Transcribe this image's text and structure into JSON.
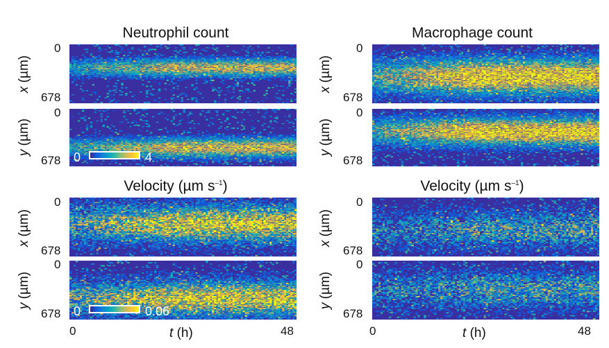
{
  "chart_data": [
    {
      "type": "heatmap",
      "panel": "neutrophil-count-x",
      "title": "Neutrophil count",
      "ylabel_var": "x",
      "ylabel_unit": "(µm)",
      "ytick_top": "0",
      "ytick_bottom": "678",
      "ylim": [
        0,
        678
      ],
      "xlim": [
        0,
        48
      ],
      "band_center": 0.4,
      "band_width": 0.16,
      "intensity": 0.75,
      "scatter": 0.25,
      "colorbar": null
    },
    {
      "type": "heatmap",
      "panel": "neutrophil-count-y",
      "ylabel_var": "y",
      "ylabel_unit": "(µm)",
      "ytick_top": "0",
      "ytick_bottom": "678",
      "ylim": [
        0,
        678
      ],
      "xlim": [
        0,
        48
      ],
      "band_center": 0.68,
      "band_width": 0.18,
      "intensity": 0.8,
      "scatter": 0.25,
      "colorbar": {
        "min": "0",
        "max": "4"
      }
    },
    {
      "type": "heatmap",
      "panel": "macrophage-count-x",
      "title": "Macrophage count",
      "ylabel_var": "x",
      "ylabel_unit": "(µm)",
      "ytick_top": "0",
      "ytick_bottom": "678",
      "ylim": [
        0,
        678
      ],
      "xlim": [
        0,
        48
      ],
      "band_center": 0.55,
      "band_width": 0.32,
      "intensity": 0.95,
      "scatter": 0.3,
      "colorbar": null
    },
    {
      "type": "heatmap",
      "panel": "macrophage-count-y",
      "ylabel_var": "y",
      "ylabel_unit": "(µm)",
      "ytick_top": "0",
      "ytick_bottom": "678",
      "ylim": [
        0,
        678
      ],
      "xlim": [
        0,
        48
      ],
      "band_center": 0.4,
      "band_width": 0.26,
      "intensity": 0.95,
      "scatter": 0.3,
      "colorbar": null
    },
    {
      "type": "heatmap",
      "panel": "neutrophil-velocity-x",
      "title_main": "Velocity (µm s",
      "title_exp": "–1",
      "title_close": ")",
      "ylabel_var": "x",
      "ylabel_unit": "(µm)",
      "ytick_top": "0",
      "ytick_bottom": "678",
      "ylim": [
        0,
        678
      ],
      "xlim": [
        0,
        48
      ],
      "band_center": 0.45,
      "band_width": 0.32,
      "intensity": 0.85,
      "scatter": 0.5,
      "colorbar": null
    },
    {
      "type": "heatmap",
      "panel": "neutrophil-velocity-y",
      "ylabel_var": "y",
      "ylabel_unit": "(µm)",
      "ytick_top": "0",
      "ytick_bottom": "678",
      "ylim": [
        0,
        678
      ],
      "xlim": [
        0,
        48
      ],
      "band_center": 0.65,
      "band_width": 0.3,
      "intensity": 0.85,
      "scatter": 0.5,
      "colorbar": {
        "min": "0",
        "max": "0.06"
      },
      "xlabel_var": "t",
      "xlabel_unit": "(h)",
      "xtick_left": "0",
      "xtick_right": "48"
    },
    {
      "type": "heatmap",
      "panel": "macrophage-velocity-x",
      "title_main": "Velocity (µm s",
      "title_exp": "–1",
      "title_close": ")",
      "ylabel_var": "x",
      "ylabel_unit": "(µm)",
      "ytick_top": "0",
      "ytick_bottom": "678",
      "ylim": [
        0,
        678
      ],
      "xlim": [
        0,
        48
      ],
      "band_center": 0.55,
      "band_width": 0.3,
      "intensity": 0.45,
      "scatter": 0.5,
      "colorbar": null
    },
    {
      "type": "heatmap",
      "panel": "macrophage-velocity-y",
      "ylabel_var": "y",
      "ylabel_unit": "(µm)",
      "ytick_top": "0",
      "ytick_bottom": "678",
      "ylim": [
        0,
        678
      ],
      "xlim": [
        0,
        48
      ],
      "band_center": 0.5,
      "band_width": 0.3,
      "intensity": 0.45,
      "scatter": 0.5,
      "colorbar": null,
      "xlabel_var": "t",
      "xlabel_unit": "(h)",
      "xtick_left": "0",
      "xtick_right": "48"
    }
  ],
  "colormap": [
    "#352a87",
    "#0f5cdd",
    "#1481d6",
    "#06a4ca",
    "#2eb7a4",
    "#87bf77",
    "#d1bb59",
    "#fec832",
    "#f9fb0e"
  ],
  "background_color": "#3a2fa0"
}
